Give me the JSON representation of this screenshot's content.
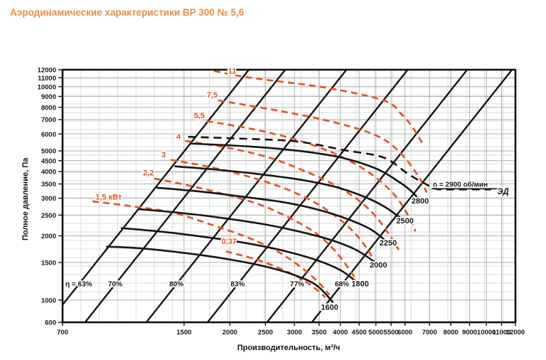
{
  "title": "Аэродинамические характеристики ВР 300 № 5,6",
  "colors": {
    "title": "#f28a3d",
    "power_curve": "#e8501e",
    "rpm_curve": "#161616",
    "grid_minor": "#dcdcdc",
    "grid_major": "#b0b0b0",
    "border": "#111111"
  },
  "chart_data": {
    "type": "line",
    "title": "Аэродинамические характеристики ВР 300 № 5,6",
    "xlabel": "Производительность, м³/ч",
    "ylabel": "Полное давление, Па",
    "x_scale": "log",
    "y_scale": "log",
    "xlim": [
      700,
      12000
    ],
    "ylim": [
      600,
      12000
    ],
    "grid": true,
    "x_ticks": [
      700,
      1500,
      2000,
      2500,
      3000,
      3500,
      4000,
      4500,
      5000,
      5500,
      6000,
      7000,
      8000,
      9000,
      10000,
      11000,
      12000
    ],
    "y_ticks": [
      600,
      1000,
      1500,
      2000,
      2500,
      3000,
      3500,
      4000,
      4500,
      5000,
      6000,
      7000,
      8000,
      9000,
      10000,
      11000,
      12000
    ],
    "rpm_curves": [
      {
        "label": "1600",
        "label_at": [
          3740,
          900
        ],
        "points": [
          [
            925,
            1780
          ],
          [
            1152,
            1745
          ],
          [
            1504,
            1662
          ],
          [
            1965,
            1557
          ],
          [
            2460,
            1445
          ],
          [
            2970,
            1318
          ],
          [
            3441,
            1174
          ],
          [
            3814,
            980
          ]
        ]
      },
      {
        "label": "1800",
        "label_at": [
          4530,
          1160
        ],
        "points": [
          [
            1014,
            2173
          ],
          [
            1311,
            2089
          ],
          [
            1710,
            1975
          ],
          [
            2249,
            1840
          ],
          [
            2830,
            1695
          ],
          [
            3441,
            1540
          ],
          [
            4020,
            1375
          ],
          [
            4504,
            1187
          ]
        ]
      },
      {
        "label": "2000",
        "label_at": [
          5080,
          1420
        ],
        "points": [
          [
            1131,
            2664
          ],
          [
            1433,
            2572
          ],
          [
            1880,
            2434
          ],
          [
            2460,
            2270
          ],
          [
            3083,
            2096
          ],
          [
            3766,
            1913
          ],
          [
            4402,
            1723
          ],
          [
            4990,
            1497
          ]
        ]
      },
      {
        "label": "2250",
        "label_at": [
          5400,
          1800
        ],
        "points": [
          [
            1269,
            3357
          ],
          [
            1650,
            3228
          ],
          [
            2143,
            3057
          ],
          [
            2830,
            2864
          ],
          [
            3530,
            2634
          ],
          [
            4222,
            2384
          ],
          [
            4850,
            2141
          ],
          [
            5321,
            1893
          ]
        ]
      },
      {
        "label": "2500",
        "label_at": [
          6000,
          2290
        ],
        "points": [
          [
            1419,
            4230
          ],
          [
            1800,
            4096
          ],
          [
            2350,
            3907
          ],
          [
            3083,
            3673
          ],
          [
            3850,
            3400
          ],
          [
            4620,
            3062
          ],
          [
            5246,
            2754
          ],
          [
            5820,
            2436
          ]
        ]
      },
      {
        "label": "2800",
        "label_at": [
          6600,
          2840
        ],
        "points": [
          [
            1560,
            5412
          ],
          [
            2249,
            5246
          ],
          [
            3083,
            5000
          ],
          [
            4020,
            4653
          ],
          [
            5019,
            4122
          ],
          [
            5731,
            3614
          ],
          [
            6255,
            3231
          ],
          [
            6543,
            2963
          ]
        ]
      }
    ],
    "motor_curve": {
      "label": "n = 2900 об/мин",
      "label2": "ЭД",
      "label_at": [
        7150,
        3480
      ],
      "label2_at": [
        10700,
        3230
      ],
      "points": [
        [
          1539,
          5823
        ],
        [
          2249,
          5689
        ],
        [
          3083,
          5519
        ],
        [
          4113,
          5032
        ],
        [
          5246,
          4653
        ],
        [
          6124,
          3895
        ],
        [
          6880,
          3475
        ],
        [
          7350,
          3310
        ],
        [
          8200,
          3300
        ],
        [
          9200,
          3300
        ],
        [
          10300,
          3300
        ]
      ]
    },
    "power_curves": [
      {
        "label": "11",
        "label_at": [
          2030,
          11830
        ],
        "points": [
          [
            1812,
            11830
          ],
          [
            2278,
            11000
          ],
          [
            3650,
            9890
          ],
          [
            5246,
            8620
          ],
          [
            5870,
            7430
          ],
          [
            6300,
            6430
          ],
          [
            6700,
            5400
          ]
        ]
      },
      {
        "label": "7,5",
        "label_at": [
          1790,
          9130
        ],
        "points": [
          [
            1860,
            8620
          ],
          [
            2580,
            7830
          ],
          [
            3530,
            7050
          ],
          [
            4620,
            6230
          ],
          [
            5390,
            5500
          ],
          [
            6060,
            4540
          ],
          [
            6600,
            3680
          ],
          [
            6880,
            3190
          ]
        ]
      },
      {
        "label": "5,5",
        "label_at": [
          1650,
          7320
        ],
        "points": [
          [
            1730,
            6890
          ],
          [
            2250,
            6380
          ],
          [
            2940,
            5730
          ],
          [
            3700,
            5010
          ],
          [
            4400,
            4330
          ],
          [
            5070,
            3680
          ],
          [
            5690,
            3030
          ],
          [
            6130,
            2480
          ],
          [
            6410,
            2100
          ]
        ]
      },
      {
        "label": "4",
        "label_at": [
          1450,
          5830
        ],
        "points": [
          [
            1510,
            5570
          ],
          [
            1970,
            5170
          ],
          [
            2560,
            4650
          ],
          [
            3190,
            4030
          ],
          [
            3810,
            3500
          ],
          [
            4430,
            2980
          ],
          [
            4980,
            2480
          ],
          [
            5450,
            2010
          ],
          [
            5770,
            1720
          ]
        ]
      },
      {
        "label": "3",
        "label_at": [
          1320,
          4790
        ],
        "points": [
          [
            1380,
            4540
          ],
          [
            1755,
            4210
          ],
          [
            2250,
            3790
          ],
          [
            2800,
            3350
          ],
          [
            3340,
            2920
          ],
          [
            3850,
            2500
          ],
          [
            4330,
            2100
          ],
          [
            4720,
            1750
          ],
          [
            4970,
            1500
          ]
        ]
      },
      {
        "label": "2,2",
        "label_at": [
          1200,
          3940
        ],
        "points": [
          [
            1245,
            3710
          ],
          [
            1570,
            3420
          ],
          [
            1990,
            3090
          ],
          [
            2440,
            2780
          ],
          [
            2930,
            2410
          ],
          [
            3400,
            2080
          ],
          [
            3810,
            1750
          ],
          [
            4160,
            1450
          ],
          [
            4400,
            1260
          ]
        ]
      },
      {
        "label": "1,5 кВт",
        "label_at": [
          935,
          3040
        ],
        "points": [
          [
            845,
            2900
          ],
          [
            1100,
            2740
          ],
          [
            1410,
            2560
          ],
          [
            1800,
            2240
          ],
          [
            2230,
            1970
          ],
          [
            2680,
            1700
          ],
          [
            3100,
            1440
          ],
          [
            3470,
            1220
          ],
          [
            3730,
            1060
          ]
        ]
      },
      {
        "label": "0,37",
        "label_at": [
          1990,
          1880
        ],
        "points": [
          [
            1950,
            1690
          ],
          [
            2330,
            1560
          ],
          [
            2700,
            1420
          ],
          [
            3100,
            1270
          ],
          [
            3420,
            1130
          ],
          [
            3640,
            1030
          ]
        ]
      }
    ],
    "efficiency_lines": [
      {
        "label": "η = 63%",
        "anchor_q": 775,
        "anchor_p": 1185,
        "exponent": 2.17
      },
      {
        "label": "70%",
        "anchor_q": 974,
        "anchor_p": 1185,
        "exponent": 2.17
      },
      {
        "label": "80%",
        "anchor_q": 1430,
        "anchor_p": 1185,
        "exponent": 2.17
      },
      {
        "label": "83%",
        "anchor_q": 2100,
        "anchor_p": 1185,
        "exponent": 2.17
      },
      {
        "label": "77%",
        "anchor_q": 3050,
        "anchor_p": 1185,
        "exponent": 2.17
      },
      {
        "label": "68%",
        "anchor_q": 4040,
        "anchor_p": 1185,
        "exponent": 2.17
      }
    ]
  }
}
